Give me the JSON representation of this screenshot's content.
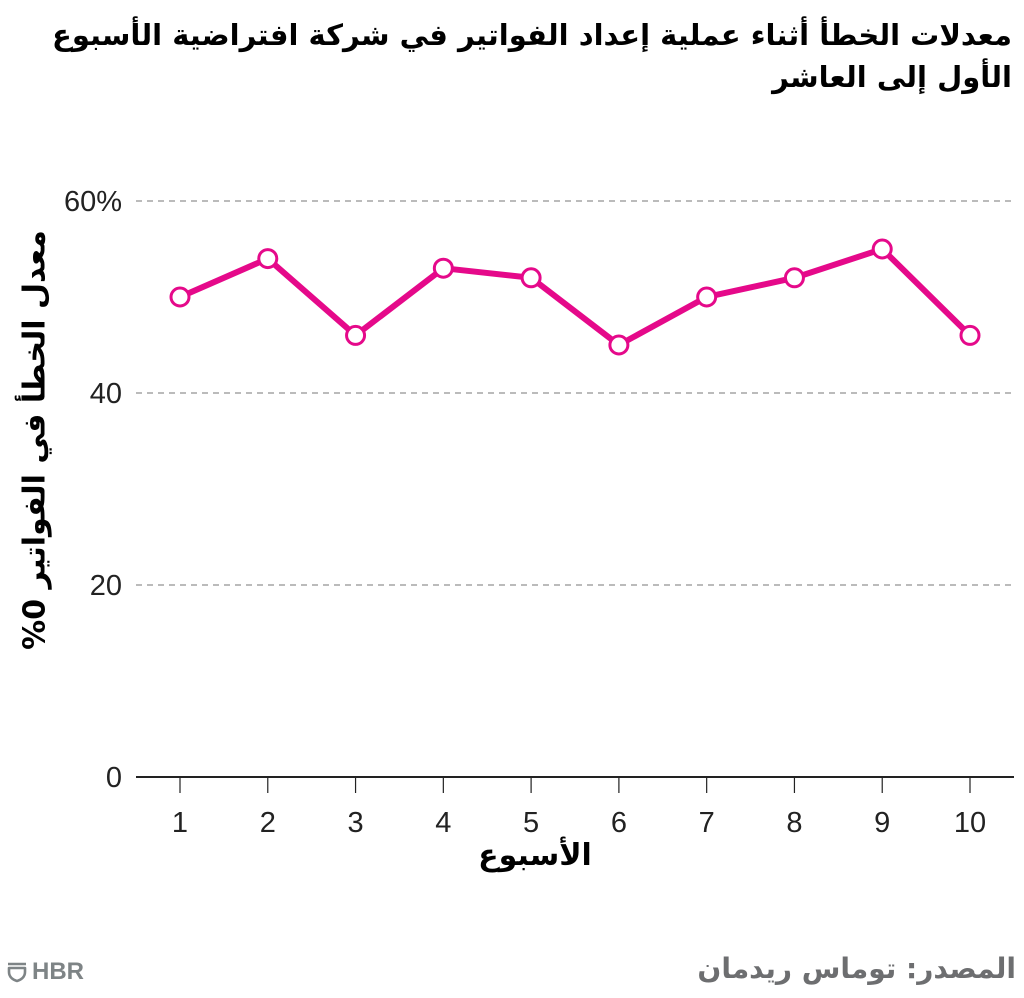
{
  "title": "معدلات الخطأ أثناء عملية إعداد الفواتير في شركة افتراضية الأسبوع الأول إلى العاشر",
  "footer": {
    "source": "المصدر: توماس ريدمان",
    "logo_text": "HBR",
    "logo_icon": "shield-icon"
  },
  "colors": {
    "line": "#e5098a",
    "grid": "#777777",
    "axis": "#222222",
    "footer_text": "#6d6e70"
  },
  "chart_data": {
    "type": "line",
    "title": "معدلات الخطأ أثناء عملية إعداد الفواتير في شركة افتراضية الأسبوع الأول إلى العاشر",
    "xlabel": "الأسبوع",
    "ylabel": "معدل الخطأ في الفواتير 0%",
    "categories": [
      "1",
      "2",
      "3",
      "4",
      "5",
      "6",
      "7",
      "8",
      "9",
      "10"
    ],
    "x": [
      1,
      2,
      3,
      4,
      5,
      6,
      7,
      8,
      9,
      10
    ],
    "series": [
      {
        "name": "معدل الخطأ",
        "values": [
          50,
          54,
          46,
          53,
          52,
          45,
          50,
          52,
          55,
          46
        ]
      }
    ],
    "ylim": [
      0,
      60
    ],
    "yticks": [
      0,
      20,
      40,
      60
    ],
    "ytick_labels": [
      "0",
      "20",
      "40",
      "60%"
    ],
    "grid": true,
    "grid_style": "dashed-horizontal",
    "markers": "hollow-circle",
    "legend": "none"
  }
}
